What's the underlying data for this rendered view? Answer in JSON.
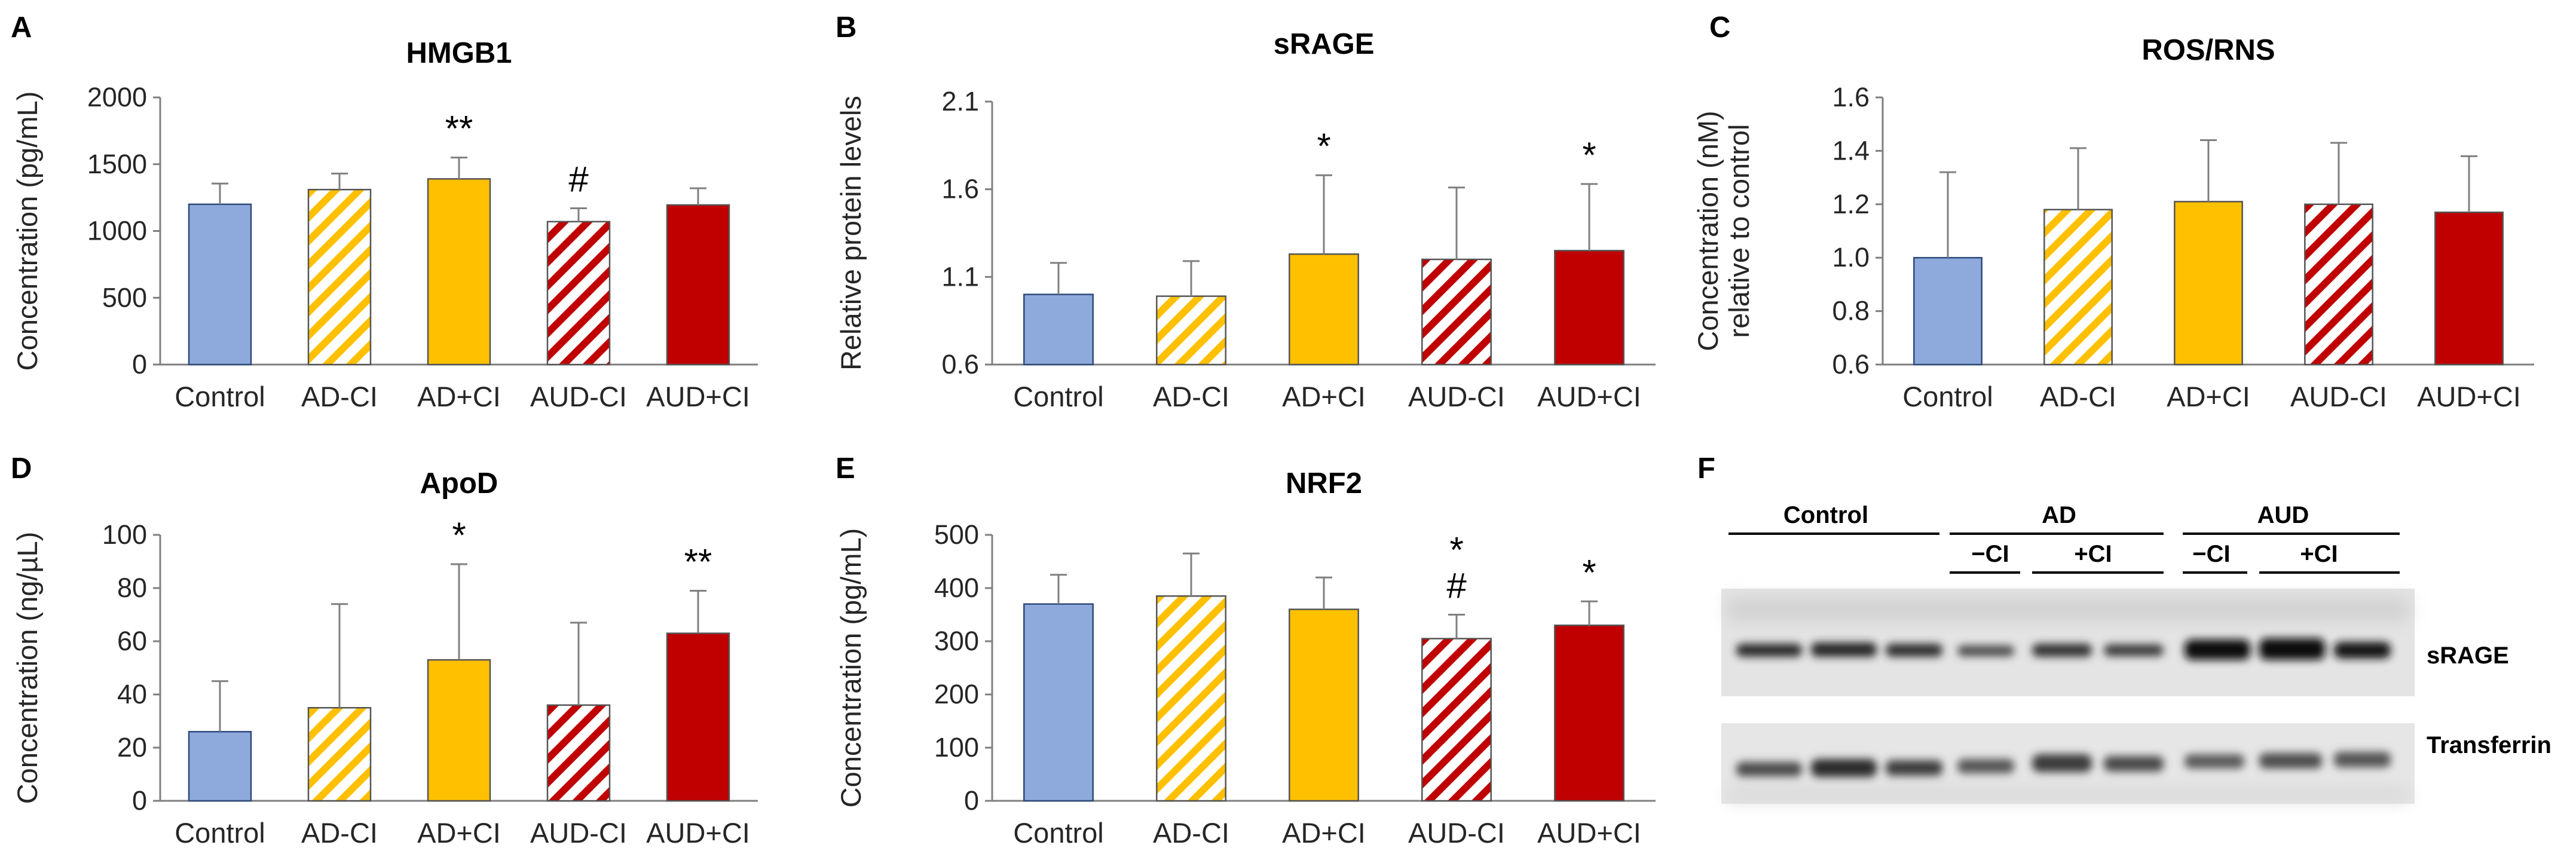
{
  "colors": {
    "control": "#8EA9DB",
    "ad": "#FFC000",
    "aud": "#C00000",
    "axis": "#7f7f7f",
    "text": "#262626"
  },
  "chart_data": [
    {
      "panel": "A",
      "type": "bar",
      "title": "HMGB1",
      "ylabel": [
        "Concentration (pg/mL)"
      ],
      "categories": [
        "Control",
        "AD-CI",
        "AD+CI",
        "AUD-CI",
        "AUD+CI"
      ],
      "values": [
        1200,
        1310,
        1390,
        1070,
        1195
      ],
      "errors": [
        155,
        120,
        160,
        100,
        125
      ],
      "significance": [
        "",
        "",
        "**",
        "#",
        ""
      ],
      "ylim": [
        0,
        2000
      ],
      "yticks": [
        0,
        500,
        1000,
        1500,
        2000
      ],
      "ytick_labels": [
        "0",
        "500",
        "1000",
        "1500",
        "2000"
      ]
    },
    {
      "panel": "B",
      "type": "bar",
      "title": "sRAGE",
      "ylabel": [
        "Relative protein levels"
      ],
      "categories": [
        "Control",
        "AD-CI",
        "AD+CI",
        "AUD-CI",
        "AUD+CI"
      ],
      "values": [
        1.0,
        0.99,
        1.23,
        1.2,
        1.25
      ],
      "errors": [
        0.18,
        0.2,
        0.45,
        0.41,
        0.38
      ],
      "significance": [
        "",
        "",
        "*",
        "",
        "*"
      ],
      "ylim": [
        0.6,
        2.1
      ],
      "yticks": [
        0.6,
        1.1,
        1.6,
        2.1
      ],
      "ytick_labels": [
        "0.6",
        "1.1",
        "1.6",
        "2.1"
      ]
    },
    {
      "panel": "C",
      "type": "bar",
      "title": "ROS/RNS",
      "ylabel": [
        "Concentration (nM)",
        "relative to control"
      ],
      "categories": [
        "Control",
        "AD-CI",
        "AD+CI",
        "AUD-CI",
        "AUD+CI"
      ],
      "values": [
        1.0,
        1.18,
        1.21,
        1.2,
        1.17
      ],
      "errors": [
        0.32,
        0.23,
        0.23,
        0.23,
        0.21
      ],
      "significance": [
        "",
        "",
        "",
        "",
        ""
      ],
      "ylim": [
        0.6,
        1.6
      ],
      "yticks": [
        0.6,
        0.8,
        1.0,
        1.2,
        1.4,
        1.6
      ],
      "ytick_labels": [
        "0.6",
        "0.8",
        "1.0",
        "1.2",
        "1.4",
        "1.6"
      ]
    },
    {
      "panel": "D",
      "type": "bar",
      "title": "ApoD",
      "ylabel": [
        "Concentration (ng/µL)"
      ],
      "categories": [
        "Control",
        "AD-CI",
        "AD+CI",
        "AUD-CI",
        "AUD+CI"
      ],
      "values": [
        26,
        35,
        53,
        36,
        63
      ],
      "errors": [
        19,
        39,
        36,
        31,
        16
      ],
      "significance": [
        "",
        "",
        "*",
        "",
        "**"
      ],
      "ylim": [
        0,
        100
      ],
      "yticks": [
        0,
        20,
        40,
        60,
        80,
        100
      ],
      "ytick_labels": [
        "0",
        "20",
        "40",
        "60",
        "80",
        "100"
      ]
    },
    {
      "panel": "E",
      "type": "bar",
      "title": "NRF2",
      "ylabel": [
        "Concentration (pg/mL)"
      ],
      "categories": [
        "Control",
        "AD-CI",
        "AD+CI",
        "AUD-CI",
        "AUD+CI"
      ],
      "values": [
        370,
        385,
        360,
        305,
        330
      ],
      "errors": [
        55,
        80,
        60,
        45,
        45
      ],
      "significance": [
        "",
        "",
        "",
        "*\n#",
        "*"
      ],
      "ylim": [
        0,
        500
      ],
      "yticks": [
        0,
        100,
        200,
        300,
        400,
        500
      ],
      "ytick_labels": [
        "0",
        "100",
        "200",
        "300",
        "400",
        "500"
      ]
    }
  ],
  "blot": {
    "letter": "F",
    "group_control": "Control",
    "group_ad": "AD",
    "group_aud": "AUD",
    "minus_ci": "−CI",
    "plus_ci": "+CI",
    "band_srage": "sRAGE",
    "band_transferrin": "Transferrin"
  }
}
